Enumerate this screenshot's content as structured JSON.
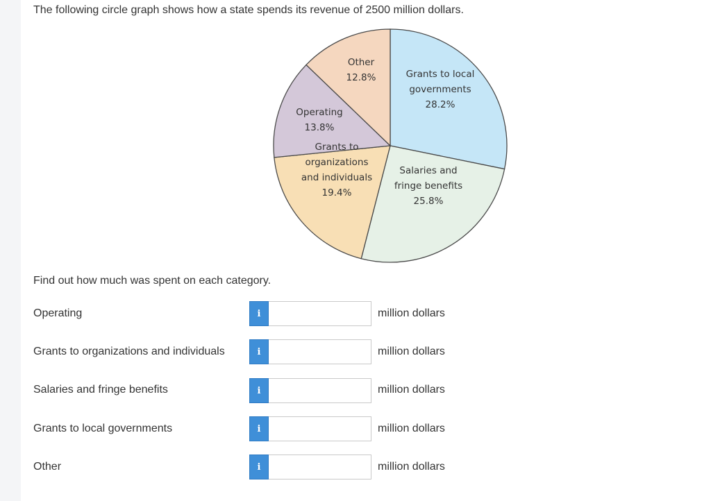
{
  "question": "The following circle graph shows how a state spends its revenue of 2500 million dollars.",
  "prompt": "Find out how much was spent on each category.",
  "chart_data": {
    "type": "pie",
    "title": "",
    "slices": [
      {
        "label_lines": [
          "Grants to local",
          "governments",
          "28.2%"
        ],
        "value": 28.2,
        "color": "#c5e6f7"
      },
      {
        "label_lines": [
          "Salaries and",
          "fringe benefits",
          "25.8%"
        ],
        "value": 25.8,
        "color": "#e6f1e7"
      },
      {
        "label_lines": [
          "Grants to",
          "organizations",
          "and individuals",
          "19.4%"
        ],
        "value": 19.4,
        "color": "#f8dfb5"
      },
      {
        "label_lines": [
          "Operating",
          "13.8%"
        ],
        "value": 13.8,
        "color": "#d4c8d9"
      },
      {
        "label_lines": [
          "Other",
          "12.8%"
        ],
        "value": 12.8,
        "color": "#f5d7bf"
      }
    ]
  },
  "rows": [
    {
      "label": "Operating",
      "info": "i",
      "value": "",
      "unit": "million dollars"
    },
    {
      "label": "Grants to organizations and individuals",
      "info": "i",
      "value": "",
      "unit": "million dollars"
    },
    {
      "label": "Salaries and fringe benefits",
      "info": "i",
      "value": "",
      "unit": "million dollars"
    },
    {
      "label": "Grants to local governments",
      "info": "i",
      "value": "",
      "unit": "million dollars"
    },
    {
      "label": "Other",
      "info": "i",
      "value": "",
      "unit": "million dollars"
    }
  ]
}
